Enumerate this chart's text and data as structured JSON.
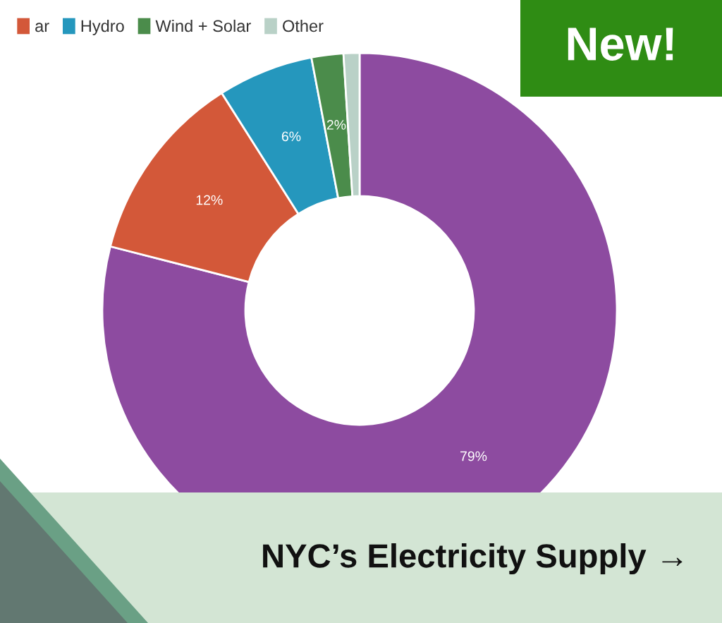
{
  "chart_data": {
    "type": "donut",
    "title": "NYC’s Electricity Supply →",
    "annotations": [
      "New!"
    ],
    "categories": [
      null,
      "ar",
      "Hydro",
      "Wind + Solar",
      "Other"
    ],
    "values": [
      79,
      12,
      6,
      2,
      1
    ],
    "colors": [
      "#8d4ba0",
      "#d35839",
      "#2597bd",
      "#4b8c4b",
      "#b9d1c7"
    ],
    "value_labels": [
      "79%",
      "12%",
      "6%",
      "2%",
      null
    ],
    "legend": "top left"
  }
}
